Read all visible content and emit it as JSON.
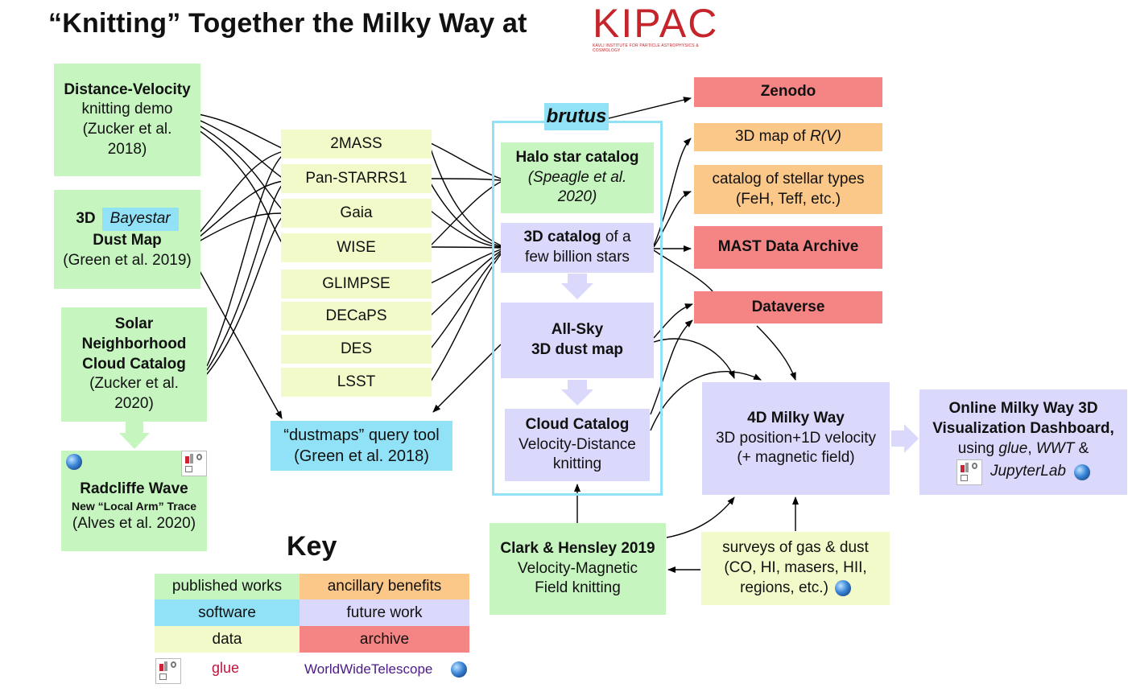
{
  "title": "“Knitting” Together the Milky Way at",
  "logo": {
    "text": "KIPAC",
    "subtitle": "KAVLI INSTITUTE FOR PARTICLE ASTROPHYSICS & COSMOLOGY"
  },
  "published": {
    "distance_velocity": {
      "line1": "Distance-Velocity",
      "line2": "knitting demo",
      "line3": "(Zucker et al.",
      "line4": "2018)"
    },
    "bayestar": {
      "prefix": "3D",
      "tag": "Bayestar",
      "line2": "Dust Map",
      "line3": "(Green et al. 2019)"
    },
    "solar": {
      "line1": "Solar",
      "line2": "Neighborhood",
      "line3": "Cloud Catalog",
      "line4": "(Zucker et al.",
      "line5": "2020)"
    },
    "radcliffe": {
      "line1": "Radcliffe Wave",
      "line2": "New “Local Arm” Trace",
      "line3": "(Alves et al. 2020)"
    },
    "clark": {
      "line1": "Clark & Hensley 2019",
      "line2": "Velocity-Magnetic",
      "line3": "Field knitting"
    }
  },
  "data_sources": [
    "2MASS",
    "Pan-STARRS1",
    "Gaia",
    "WISE",
    "GLIMPSE",
    "DECaPS",
    "DES",
    "LSST"
  ],
  "dustmaps": {
    "line1": "“dustmaps” query tool",
    "line2": "(Green et al. 2018)"
  },
  "brutus": {
    "label": "brutus",
    "halo": {
      "line1": "Halo star catalog",
      "line2": "(Speagle et al.",
      "line3": "2020)"
    },
    "catalog": {
      "bold": "3D catalog",
      "rest": " of a",
      "line2": "few billion stars"
    },
    "allsky": {
      "line1": "All-Sky",
      "line2": "3D dust map"
    },
    "cloud": {
      "line1": "Cloud Catalog",
      "line2": "Velocity-Distance",
      "line3": "knitting"
    }
  },
  "outputs": {
    "zenodo": "Zenodo",
    "rv": {
      "text": "3D map of ",
      "italic": "R(V)"
    },
    "stellar": {
      "line1": "catalog of stellar types",
      "line2": "(FeH, Teff, etc.)"
    },
    "mast": "MAST Data Archive",
    "dataverse": "Dataverse"
  },
  "milkyway4d": {
    "line1": "4D Milky Way",
    "line2": "3D position+1D velocity",
    "line3": "(+ magnetic field)"
  },
  "dashboard": {
    "line1": "Online Milky Way 3D",
    "line2": "Visualization Dashboard,",
    "line3_a": "using ",
    "line3_glue": "glue",
    "line3_b": ", ",
    "line3_wwt": "WWT",
    "line3_c": " &",
    "line4": "JupyterLab"
  },
  "surveys": {
    "line1": "surveys of gas & dust",
    "line2": "(CO, HI, masers, HII,",
    "line3": "regions, etc.)"
  },
  "key": {
    "title": "Key",
    "items": [
      "published works",
      "ancillary benefits",
      "software",
      "future work",
      "data",
      "archive"
    ],
    "glue": "glue",
    "wwt": "WorldWideTelescope"
  },
  "colors": {
    "published": "#c6f5c0",
    "data": "#f3fac9",
    "software": "#91e2f6",
    "future": "#dad8fb",
    "ancillary": "#fbc889",
    "archive": "#f58585",
    "glue_text": "#c0143c",
    "wwt_text": "#4b1a86"
  }
}
